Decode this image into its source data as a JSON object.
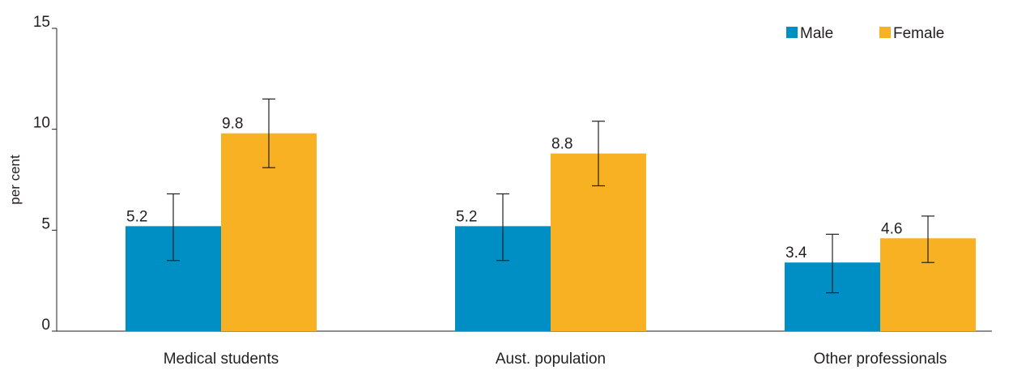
{
  "chart_data": {
    "type": "bar",
    "title": "",
    "xlabel": "",
    "ylabel": "per cent",
    "ylim": [
      0,
      15
    ],
    "yticks": [
      "0",
      "5",
      "10",
      "15"
    ],
    "categories": [
      "Medical students",
      "Aust. population",
      "Other professionals"
    ],
    "series": [
      {
        "name": "Male",
        "color": "#008fc5",
        "values": [
          5.2,
          5.2,
          3.4
        ],
        "labels": [
          "5.2",
          "5.2",
          "3.4"
        ],
        "error_low": [
          3.5,
          3.5,
          1.9
        ],
        "error_high": [
          6.8,
          6.8,
          4.8
        ]
      },
      {
        "name": "Female",
        "color": "#f8b122",
        "values": [
          9.8,
          8.8,
          4.6
        ],
        "labels": [
          "9.8",
          "8.8",
          "4.6"
        ],
        "error_low": [
          8.1,
          7.2,
          3.4
        ],
        "error_high": [
          11.5,
          10.4,
          5.7
        ]
      }
    ],
    "legend_position": "top-right",
    "grid": false
  }
}
